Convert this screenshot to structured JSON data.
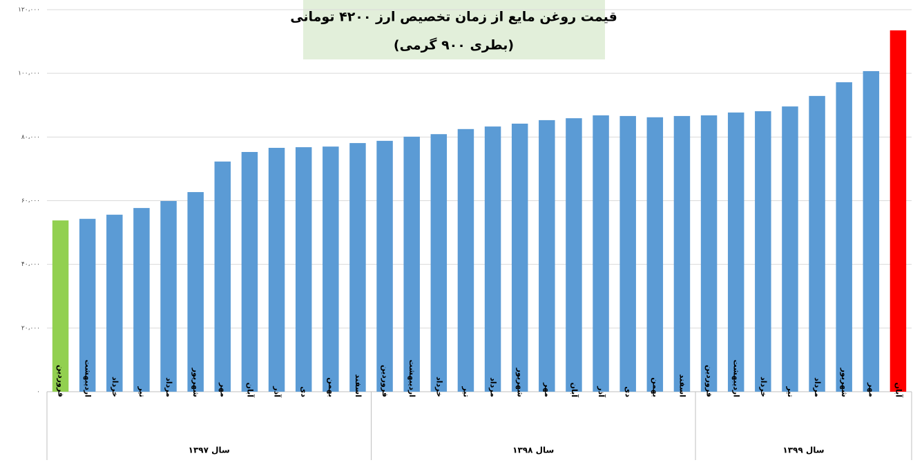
{
  "chart_data": {
    "type": "bar",
    "title": [
      "قیمت روغن مایع از زمان تخصیص ارز ۴۲۰۰ تومانی",
      "(بطری ۹۰۰ گرمی)"
    ],
    "groups": [
      {
        "label": "سال ۱۳۹۷",
        "categories": [
          "فروردین",
          "اردیبهشت",
          "خرداد",
          "تیر",
          "مرداد",
          "شهریور",
          "مهر",
          "آبان",
          "آذر",
          "دی",
          "بهمن",
          "اسفند"
        ],
        "values": [
          53800,
          54300,
          55600,
          57700,
          59900,
          62700,
          72300,
          75300,
          76600,
          76800,
          77000,
          78100
        ],
        "colors": [
          "#92d050",
          "#5b9bd5",
          "#5b9bd5",
          "#5b9bd5",
          "#5b9bd5",
          "#5b9bd5",
          "#5b9bd5",
          "#5b9bd5",
          "#5b9bd5",
          "#5b9bd5",
          "#5b9bd5",
          "#5b9bd5"
        ]
      },
      {
        "label": "سال ۱۳۹۸",
        "categories": [
          "فروردین",
          "اردیبهشت",
          "خرداد",
          "تیر",
          "مرداد",
          "شهریور",
          "مهر",
          "آبان",
          "آذر",
          "دی",
          "بهمن",
          "اسفند"
        ],
        "values": [
          78800,
          80100,
          80900,
          82500,
          83300,
          84200,
          85300,
          85900,
          86800,
          86600,
          86200,
          86600
        ],
        "colors": [
          "#5b9bd5",
          "#5b9bd5",
          "#5b9bd5",
          "#5b9bd5",
          "#5b9bd5",
          "#5b9bd5",
          "#5b9bd5",
          "#5b9bd5",
          "#5b9bd5",
          "#5b9bd5",
          "#5b9bd5",
          "#5b9bd5"
        ]
      },
      {
        "label": "سال ۱۳۹۹",
        "categories": [
          "فروردین",
          "اردیبهشت",
          "خرداد",
          "تیر",
          "مرداد",
          "شهریور",
          "مهر",
          "آبان"
        ],
        "values": [
          86800,
          87700,
          88100,
          89600,
          92900,
          97200,
          100700,
          113500
        ],
        "colors": [
          "#5b9bd5",
          "#5b9bd5",
          "#5b9bd5",
          "#5b9bd5",
          "#5b9bd5",
          "#5b9bd5",
          "#5b9bd5",
          "#ff0000"
        ]
      }
    ],
    "ylim": [
      0,
      120000
    ],
    "yticks": [
      {
        "value": 0,
        "label": "۰"
      },
      {
        "value": 20000,
        "label": "۲۰،۰۰۰"
      },
      {
        "value": 40000,
        "label": "۴۰،۰۰۰"
      },
      {
        "value": 60000,
        "label": "۶۰،۰۰۰"
      },
      {
        "value": 80000,
        "label": "۸۰،۰۰۰"
      },
      {
        "value": 100000,
        "label": "۱۰۰،۰۰۰"
      },
      {
        "value": 120000,
        "label": "۱۲۰،۰۰۰"
      }
    ],
    "grid": true
  }
}
